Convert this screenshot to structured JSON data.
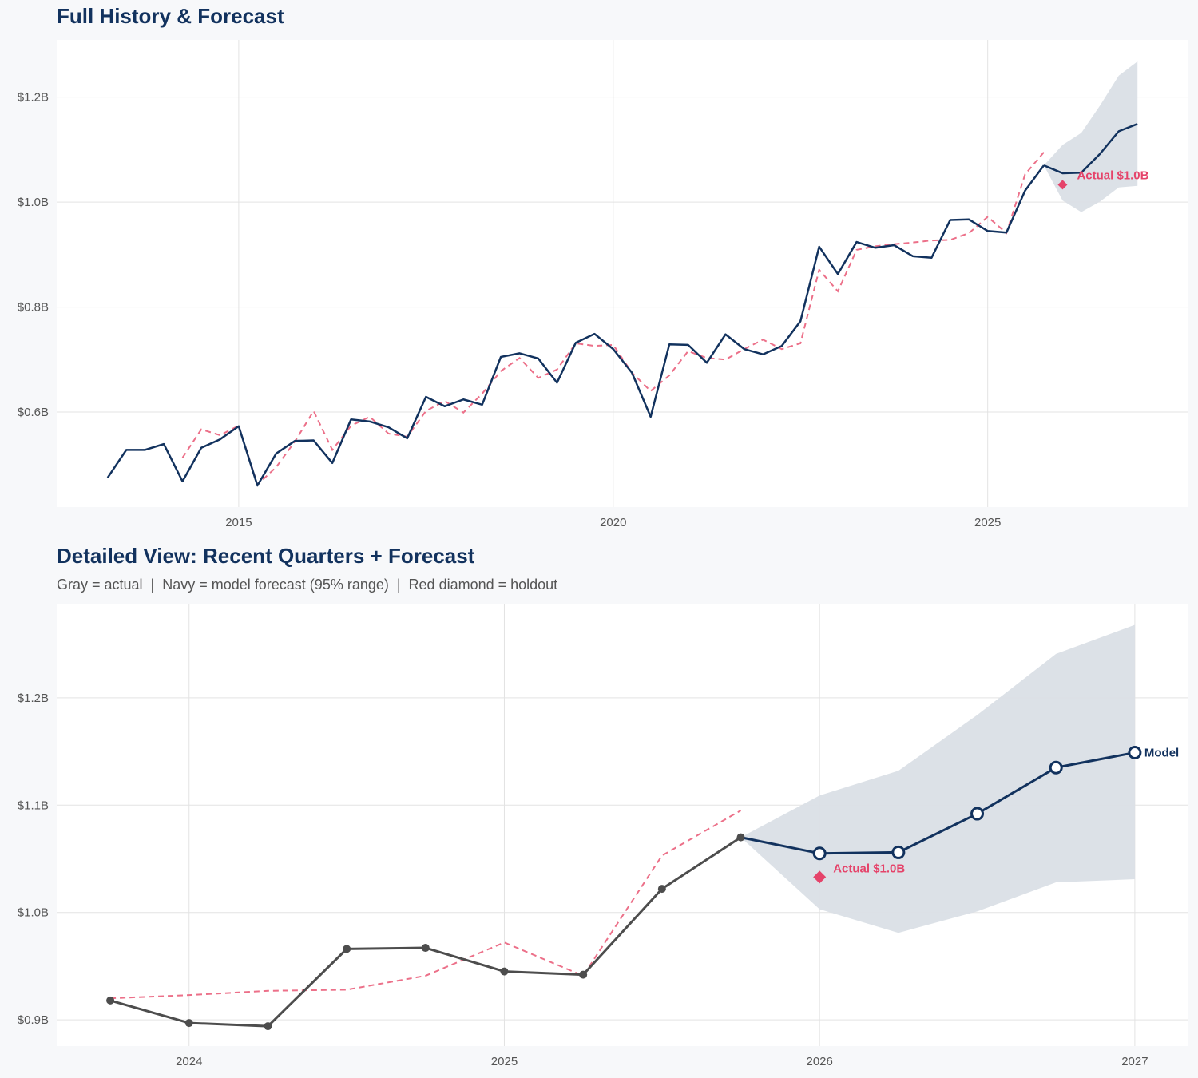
{
  "chart_data": [
    {
      "type": "line",
      "title": "Full History & Forecast",
      "xlim": [
        2012.57,
        2027.68
      ],
      "ylim": [
        0.419,
        1.309
      ],
      "x_ticks": [
        {
          "value": 2015,
          "label": "2015"
        },
        {
          "value": 2020,
          "label": "2020"
        },
        {
          "value": 2025,
          "label": "2025"
        }
      ],
      "y_ticks": [
        {
          "value": 0.6,
          "label": "$0.6B"
        },
        {
          "value": 0.8,
          "label": "$0.8B"
        },
        {
          "value": 1.0,
          "label": "$1.0B"
        },
        {
          "value": 1.2,
          "label": "$1.2B"
        }
      ],
      "grid": true,
      "actual": {
        "x_start": 2013.25,
        "step": 0.25,
        "values": [
          0.475,
          0.528,
          0.528,
          0.539,
          0.468,
          0.532,
          0.548,
          0.573,
          0.46,
          0.521,
          0.545,
          0.546,
          0.503,
          0.586,
          0.582,
          0.571,
          0.55,
          0.629,
          0.611,
          0.624,
          0.614,
          0.705,
          0.712,
          0.702,
          0.656,
          0.732,
          0.749,
          0.72,
          0.675,
          0.591,
          0.729,
          0.728,
          0.694,
          0.748,
          0.72,
          0.71,
          0.726,
          0.773,
          0.915,
          0.863,
          0.924,
          0.913,
          0.918,
          0.897,
          0.894,
          0.966,
          0.967,
          0.945,
          0.942,
          1.022,
          1.07
        ]
      },
      "fitted": {
        "x_start": 2014.25,
        "step": 0.25,
        "values": [
          0.513,
          0.567,
          0.556,
          0.574,
          0.462,
          0.495,
          0.544,
          0.602,
          0.528,
          0.574,
          0.591,
          0.559,
          0.553,
          0.602,
          0.621,
          0.599,
          0.635,
          0.678,
          0.703,
          0.665,
          0.681,
          0.731,
          0.726,
          0.728,
          0.675,
          0.64,
          0.67,
          0.716,
          0.703,
          0.7,
          0.72,
          0.738,
          0.72,
          0.731,
          0.871,
          0.83,
          0.909,
          0.916,
          0.92,
          0.923,
          0.927,
          0.928,
          0.941,
          0.972,
          0.941,
          1.053,
          1.095
        ]
      },
      "forecast": {
        "x": [
          2025.75,
          2026.0,
          2026.25,
          2026.5,
          2026.75,
          2027.0
        ],
        "values": [
          1.07,
          1.055,
          1.056,
          1.092,
          1.135,
          1.149
        ],
        "upper": [
          1.07,
          1.109,
          1.132,
          1.184,
          1.241,
          1.268
        ],
        "lower": [
          1.07,
          1.003,
          0.981,
          1.001,
          1.028,
          1.031
        ]
      },
      "holdout": {
        "x": 2026.0,
        "value": 1.033,
        "label": "Actual $1.0B"
      }
    },
    {
      "type": "line",
      "title": "Detailed View: Recent Quarters + Forecast",
      "subtitle": "Gray = actual  |  Navy = model forecast (95% range)  |  Red diamond = holdout",
      "xlim": [
        2023.58,
        2027.17
      ],
      "ylim": [
        0.8755,
        1.287
      ],
      "x_ticks": [
        {
          "value": 2024,
          "label": "2024"
        },
        {
          "value": 2025,
          "label": "2025"
        },
        {
          "value": 2026,
          "label": "2026"
        },
        {
          "value": 2027,
          "label": "2027"
        }
      ],
      "y_ticks": [
        {
          "value": 0.9,
          "label": "$0.9B"
        },
        {
          "value": 1.0,
          "label": "$1.0B"
        },
        {
          "value": 1.1,
          "label": "$1.1B"
        },
        {
          "value": 1.2,
          "label": "$1.2B"
        }
      ],
      "grid": true,
      "actual": {
        "x": [
          2023.75,
          2024.0,
          2024.25,
          2024.5,
          2024.75,
          2025.0,
          2025.25,
          2025.5,
          2025.75
        ],
        "values": [
          0.918,
          0.897,
          0.894,
          0.966,
          0.967,
          0.945,
          0.942,
          1.022,
          1.07
        ]
      },
      "fitted": {
        "x": [
          2023.75,
          2024.0,
          2024.25,
          2024.5,
          2024.75,
          2025.0,
          2025.25,
          2025.5,
          2025.75
        ],
        "values": [
          0.92,
          0.923,
          0.927,
          0.928,
          0.941,
          0.972,
          0.941,
          1.053,
          1.095
        ]
      },
      "forecast": {
        "name": "Model",
        "x": [
          2025.75,
          2026.0,
          2026.25,
          2026.5,
          2026.75,
          2027.0
        ],
        "values": [
          1.07,
          1.055,
          1.056,
          1.092,
          1.135,
          1.149
        ],
        "upper": [
          1.07,
          1.109,
          1.132,
          1.184,
          1.241,
          1.268
        ],
        "lower": [
          1.07,
          1.003,
          0.981,
          1.001,
          1.028,
          1.031
        ]
      },
      "holdout": {
        "x": 2026.0,
        "value": 1.033,
        "label": "Actual $1.0B"
      }
    }
  ],
  "colors": {
    "navy": "#12325e",
    "actual_gray": "#4d4d4d",
    "fitted_red": "#ec7089",
    "holdout_red": "#e5436a",
    "band": "#dadfe6",
    "grid": "#e3e3e3",
    "plot_bg": "#ffffff",
    "page_bg": "#f7f8fa"
  }
}
